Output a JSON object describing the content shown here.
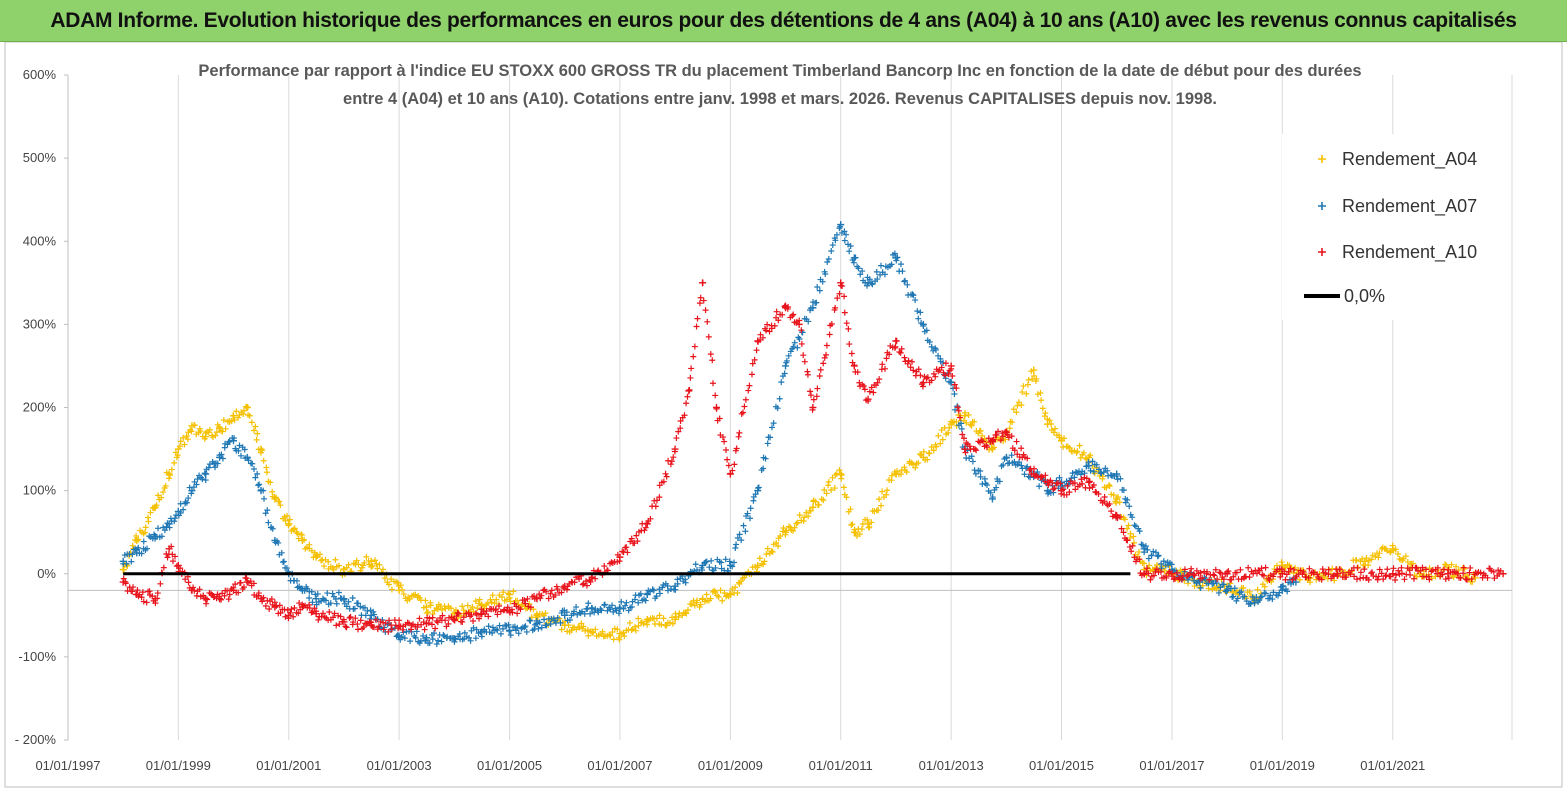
{
  "banner": {
    "title": "ADAM Informe. Evolution historique des performances en euros pour des détentions de 4 ans (A04) à 10 ans (A10) avec les revenus connus capitalisés"
  },
  "chart_data": {
    "type": "scatter",
    "title_line1": "Performance par rapport à l'indice EU STOXX 600 GROSS TR  du placement Timberland Bancorp Inc en fonction de la date de début pour des durées",
    "title_line2": "entre 4 (A04) et 10 ans (A10). Cotations entre janv. 1998 et mars. 2026. Revenus CAPITALISES depuis nov. 1998.",
    "xlabel": "",
    "ylabel": "",
    "ylim": [
      -200,
      600
    ],
    "y_ticks": [
      "600%",
      "500%",
      "400%",
      "300%",
      "200%",
      "100%",
      "0%",
      "-100%",
      "- 200%"
    ],
    "x_ticks": [
      "01/01/1997",
      "01/01/1999",
      "01/01/2001",
      "01/01/2003",
      "01/01/2005",
      "01/01/2007",
      "01/01/2009",
      "01/01/2011",
      "01/01/2013",
      "01/01/2015",
      "01/01/2017",
      "01/01/2019",
      "01/01/2021"
    ],
    "xlim": [
      "1997-01-01",
      "2023-03-01"
    ],
    "grid": "vertical",
    "legend_position": "top-right",
    "series": [
      {
        "name": "Rendement_A04",
        "color": "#f5c000",
        "marker": "plus",
        "points": [
          [
            "1998-01-01",
            5
          ],
          [
            "1998-04-01",
            40
          ],
          [
            "1998-08-01",
            80
          ],
          [
            "1998-11-01",
            120
          ],
          [
            "1999-01-01",
            150
          ],
          [
            "1999-04-01",
            178
          ],
          [
            "1999-07-01",
            165
          ],
          [
            "1999-10-01",
            175
          ],
          [
            "2000-01-01",
            190
          ],
          [
            "2000-04-01",
            200
          ],
          [
            "2000-07-01",
            150
          ],
          [
            "2000-10-01",
            90
          ],
          [
            "2001-01-01",
            60
          ],
          [
            "2001-04-01",
            40
          ],
          [
            "2001-07-01",
            20
          ],
          [
            "2002-01-01",
            5
          ],
          [
            "2002-07-01",
            15
          ],
          [
            "2003-01-01",
            -20
          ],
          [
            "2003-07-01",
            -40
          ],
          [
            "2004-01-01",
            -48
          ],
          [
            "2004-07-01",
            -38
          ],
          [
            "2005-01-01",
            -25
          ],
          [
            "2005-07-01",
            -50
          ],
          [
            "2006-01-01",
            -62
          ],
          [
            "2006-07-01",
            -70
          ],
          [
            "2007-01-01",
            -72
          ],
          [
            "2007-07-01",
            -55
          ],
          [
            "2008-01-01",
            -55
          ],
          [
            "2008-07-01",
            -30
          ],
          [
            "2009-01-01",
            -25
          ],
          [
            "2009-07-01",
            10
          ],
          [
            "2010-01-01",
            50
          ],
          [
            "2010-07-01",
            80
          ],
          [
            "2011-01-01",
            120
          ],
          [
            "2011-04-01",
            50
          ],
          [
            "2011-07-01",
            60
          ],
          [
            "2012-01-01",
            120
          ],
          [
            "2012-07-01",
            140
          ],
          [
            "2013-01-01",
            180
          ],
          [
            "2013-04-01",
            190
          ],
          [
            "2013-10-01",
            150
          ],
          [
            "2014-01-01",
            170
          ],
          [
            "2014-07-01",
            245
          ],
          [
            "2014-10-01",
            180
          ],
          [
            "2015-01-01",
            160
          ],
          [
            "2015-07-01",
            140
          ],
          [
            "2016-01-01",
            90
          ],
          [
            "2016-07-01",
            5
          ],
          [
            "2017-01-01",
            2
          ],
          [
            "2017-07-01",
            -10
          ],
          [
            "2018-01-01",
            -15
          ],
          [
            "2018-07-01",
            -30
          ],
          [
            "2019-01-01",
            10
          ],
          [
            "2019-07-01",
            -5
          ],
          [
            "2020-01-01",
            0
          ],
          [
            "2020-07-01",
            15
          ],
          [
            "2021-01-01",
            30
          ],
          [
            "2021-07-01",
            0
          ],
          [
            "2022-01-01",
            5
          ],
          [
            "2022-07-01",
            -5
          ]
        ]
      },
      {
        "name": "Rendement_A07",
        "color": "#1f77b4",
        "marker": "plus",
        "points": [
          [
            "1998-01-01",
            15
          ],
          [
            "1998-04-01",
            25
          ],
          [
            "1998-08-01",
            45
          ],
          [
            "1998-11-01",
            60
          ],
          [
            "1999-01-01",
            75
          ],
          [
            "1999-04-01",
            100
          ],
          [
            "1999-07-01",
            120
          ],
          [
            "1999-10-01",
            140
          ],
          [
            "2000-01-01",
            160
          ],
          [
            "2000-04-01",
            140
          ],
          [
            "2000-07-01",
            100
          ],
          [
            "2000-10-01",
            40
          ],
          [
            "2001-01-01",
            0
          ],
          [
            "2001-04-01",
            -20
          ],
          [
            "2001-07-01",
            -30
          ],
          [
            "2002-01-01",
            -30
          ],
          [
            "2002-07-01",
            -50
          ],
          [
            "2003-01-01",
            -75
          ],
          [
            "2003-07-01",
            -77
          ],
          [
            "2004-01-01",
            -78
          ],
          [
            "2004-07-01",
            -70
          ],
          [
            "2005-01-01",
            -68
          ],
          [
            "2005-07-01",
            -60
          ],
          [
            "2006-01-01",
            -50
          ],
          [
            "2006-07-01",
            -42
          ],
          [
            "2007-01-01",
            -42
          ],
          [
            "2007-07-01",
            -25
          ],
          [
            "2008-01-01",
            -15
          ],
          [
            "2008-07-01",
            10
          ],
          [
            "2009-01-01",
            10
          ],
          [
            "2009-07-01",
            100
          ],
          [
            "2010-01-01",
            250
          ],
          [
            "2010-07-01",
            320
          ],
          [
            "2011-01-01",
            420
          ],
          [
            "2011-04-01",
            380
          ],
          [
            "2011-07-01",
            350
          ],
          [
            "2012-01-01",
            380
          ],
          [
            "2012-07-01",
            300
          ],
          [
            "2013-01-01",
            230
          ],
          [
            "2013-04-01",
            150
          ],
          [
            "2013-10-01",
            90
          ],
          [
            "2014-01-01",
            140
          ],
          [
            "2014-07-01",
            120
          ],
          [
            "2014-10-01",
            100
          ],
          [
            "2015-01-01",
            110
          ],
          [
            "2015-07-01",
            130
          ],
          [
            "2016-01-01",
            120
          ],
          [
            "2016-07-01",
            30
          ],
          [
            "2017-01-01",
            5
          ],
          [
            "2017-07-01",
            -10
          ],
          [
            "2018-01-01",
            -20
          ],
          [
            "2018-07-01",
            -35
          ],
          [
            "2019-01-01",
            -20
          ],
          [
            "2019-04-01",
            -10
          ]
        ]
      },
      {
        "name": "Rendement_A10",
        "color": "#e8141c",
        "marker": "plus",
        "points": [
          [
            "1998-01-01",
            -10
          ],
          [
            "1998-04-01",
            -25
          ],
          [
            "1998-08-01",
            -30
          ],
          [
            "1998-11-01",
            30
          ],
          [
            "1999-01-01",
            10
          ],
          [
            "1999-04-01",
            -20
          ],
          [
            "1999-07-01",
            -30
          ],
          [
            "1999-10-01",
            -30
          ],
          [
            "2000-01-01",
            -20
          ],
          [
            "2000-04-01",
            -10
          ],
          [
            "2000-07-01",
            -30
          ],
          [
            "2000-10-01",
            -40
          ],
          [
            "2001-01-01",
            -50
          ],
          [
            "2001-04-01",
            -40
          ],
          [
            "2001-07-01",
            -48
          ],
          [
            "2002-01-01",
            -58
          ],
          [
            "2002-07-01",
            -62
          ],
          [
            "2003-01-01",
            -63
          ],
          [
            "2003-07-01",
            -60
          ],
          [
            "2004-01-01",
            -55
          ],
          [
            "2004-07-01",
            -48
          ],
          [
            "2005-01-01",
            -45
          ],
          [
            "2005-07-01",
            -30
          ],
          [
            "2006-01-01",
            -15
          ],
          [
            "2006-07-01",
            -5
          ],
          [
            "2007-01-01",
            20
          ],
          [
            "2007-07-01",
            60
          ],
          [
            "2008-01-01",
            150
          ],
          [
            "2008-04-01",
            220
          ],
          [
            "2008-07-01",
            350
          ],
          [
            "2008-10-01",
            200
          ],
          [
            "2009-01-01",
            120
          ],
          [
            "2009-07-01",
            280
          ],
          [
            "2010-01-01",
            320
          ],
          [
            "2010-04-01",
            300
          ],
          [
            "2010-07-01",
            200
          ],
          [
            "2011-01-01",
            350
          ],
          [
            "2011-04-01",
            250
          ],
          [
            "2011-07-01",
            210
          ],
          [
            "2012-01-01",
            280
          ],
          [
            "2012-07-01",
            230
          ],
          [
            "2013-01-01",
            250
          ],
          [
            "2013-04-01",
            150
          ],
          [
            "2013-10-01",
            160
          ],
          [
            "2014-01-01",
            170
          ],
          [
            "2014-07-01",
            120
          ],
          [
            "2014-10-01",
            110
          ],
          [
            "2015-01-01",
            100
          ],
          [
            "2015-07-01",
            110
          ],
          [
            "2016-01-01",
            70
          ],
          [
            "2016-07-01",
            0
          ],
          [
            "2017-01-01",
            0
          ],
          [
            "2018-01-01",
            0
          ],
          [
            "2019-01-01",
            0
          ],
          [
            "2020-01-01",
            0
          ],
          [
            "2021-01-01",
            0
          ],
          [
            "2022-01-01",
            0
          ],
          [
            "2023-01-01",
            0
          ]
        ]
      },
      {
        "name": "0,0%",
        "color": "#000000",
        "marker": "line",
        "points": [
          [
            "1998-01-01",
            0
          ],
          [
            "2016-04-01",
            0
          ]
        ]
      }
    ]
  }
}
